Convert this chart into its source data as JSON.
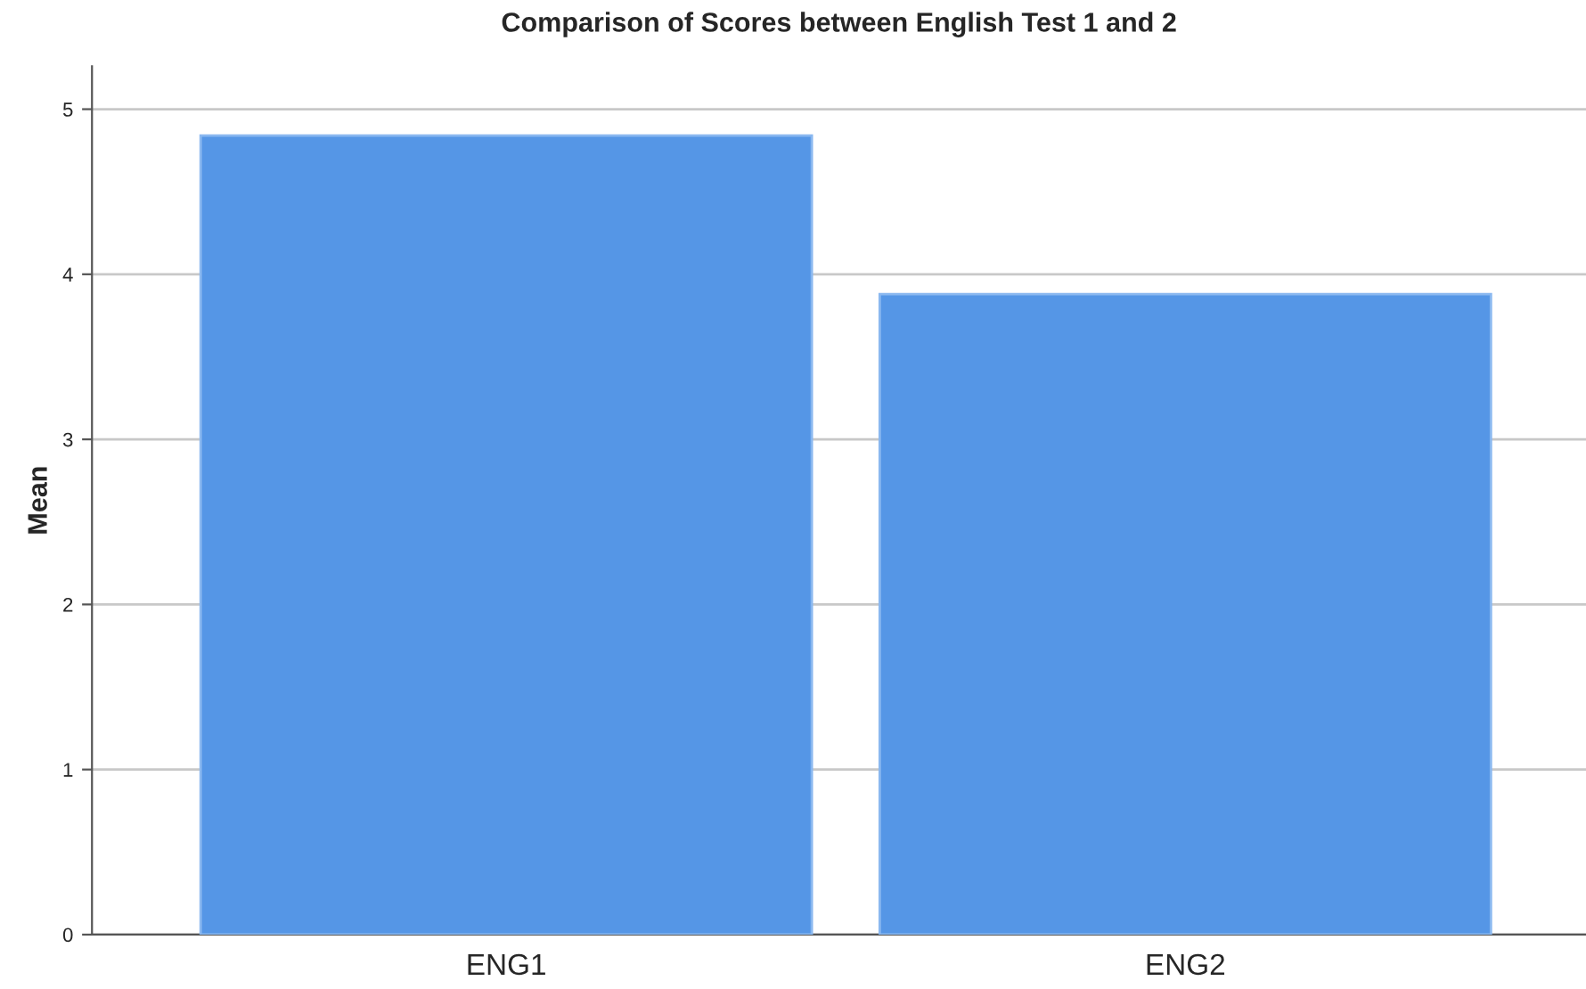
{
  "chart_data": {
    "type": "bar",
    "title": "Comparison of Scores between English Test 1 and 2",
    "ylabel": "Mean",
    "categories": [
      "ENG1",
      "ENG2"
    ],
    "values": [
      4.84,
      3.88
    ],
    "color": "#5596e6",
    "ylim": [
      0,
      5.26
    ],
    "yticks": [
      0,
      1,
      2,
      3,
      4,
      5
    ],
    "grid": "y"
  }
}
